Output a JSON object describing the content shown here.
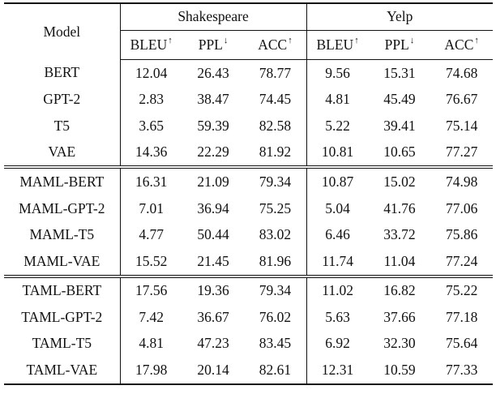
{
  "header": {
    "model": "Model",
    "groups": [
      "Shakespeare",
      "Yelp"
    ],
    "metrics": [
      {
        "name": "BLEU",
        "arrow": "↑"
      },
      {
        "name": "PPL",
        "arrow": "↓"
      },
      {
        "name": "ACC",
        "arrow": "↑"
      }
    ]
  },
  "sections": [
    {
      "rows": [
        {
          "model": "BERT",
          "values": [
            "12.04",
            "26.43",
            "78.77",
            "9.56",
            "15.31",
            "74.68"
          ],
          "bold": []
        },
        {
          "model": "GPT-2",
          "values": [
            "2.83",
            "38.47",
            "74.45",
            "4.81",
            "45.49",
            "76.67"
          ],
          "bold": []
        },
        {
          "model": "T5",
          "values": [
            "3.65",
            "59.39",
            "82.58",
            "5.22",
            "39.41",
            "75.14"
          ],
          "bold": []
        },
        {
          "model": "VAE",
          "values": [
            "14.36",
            "22.29",
            "81.92",
            "10.81",
            "10.65",
            "77.27"
          ],
          "bold": []
        }
      ]
    },
    {
      "rows": [
        {
          "model": "MAML-BERT",
          "values": [
            "16.31",
            "21.09",
            "79.34",
            "10.87",
            "15.02",
            "74.98"
          ],
          "bold": []
        },
        {
          "model": "MAML-GPT-2",
          "values": [
            "7.01",
            "36.94",
            "75.25",
            "5.04",
            "41.76",
            "77.06"
          ],
          "bold": []
        },
        {
          "model": "MAML-T5",
          "values": [
            "4.77",
            "50.44",
            "83.02",
            "6.46",
            "33.72",
            "75.86"
          ],
          "bold": []
        },
        {
          "model": "MAML-VAE",
          "values": [
            "15.52",
            "21.45",
            "81.96",
            "11.74",
            "11.04",
            "77.24"
          ],
          "bold": []
        }
      ]
    },
    {
      "rows": [
        {
          "model": "TAML-BERT",
          "values": [
            "17.56",
            "19.36",
            "79.34",
            "11.02",
            "16.82",
            "75.22"
          ],
          "bold": [
            1
          ]
        },
        {
          "model": "TAML-GPT-2",
          "values": [
            "7.42",
            "36.67",
            "76.02",
            "5.63",
            "37.66",
            "77.18"
          ],
          "bold": []
        },
        {
          "model": "TAML-T5",
          "values": [
            "4.81",
            "47.23",
            "83.45",
            "6.92",
            "32.30",
            "75.64"
          ],
          "bold": [
            2
          ]
        },
        {
          "model": "TAML-VAE",
          "values": [
            "17.98",
            "20.14",
            "82.61",
            "12.31",
            "10.59",
            "77.33"
          ],
          "bold": [
            0,
            3,
            4,
            5
          ]
        }
      ]
    }
  ]
}
